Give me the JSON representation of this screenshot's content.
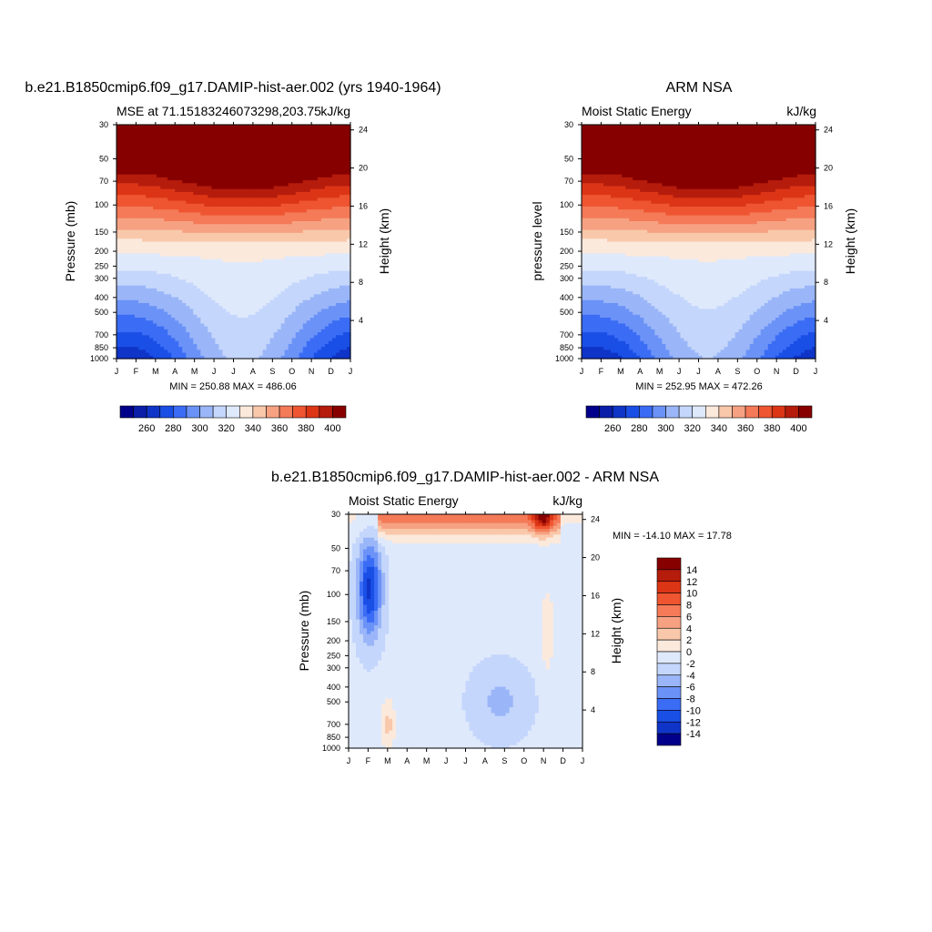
{
  "chart_data": [
    {
      "type": "heatmap",
      "title": "b.e21.B1850cmip6.f09_g17.DAMIP-hist-aer.002 (yrs 1940-1964)",
      "subtitle_left": "MSE at 71.15183246073298,203.75",
      "subtitle_right": "kJ/kg",
      "ylabel": "Pressure (mb)",
      "y2label": "Height (km)",
      "x_ticks": [
        "J",
        "F",
        "M",
        "A",
        "M",
        "J",
        "J",
        "A",
        "S",
        "O",
        "N",
        "D",
        "J"
      ],
      "y_ticks": [
        30,
        50,
        70,
        100,
        150,
        200,
        250,
        300,
        400,
        500,
        700,
        850,
        1000
      ],
      "y2_ticks": [
        24,
        20,
        16,
        12,
        8,
        4
      ],
      "y_scale": "log",
      "stats": "MIN = 250.88 MAX = 486.06",
      "colorbar_labels": [
        "260",
        "280",
        "300",
        "320",
        "340",
        "360",
        "380",
        "400"
      ],
      "colorbar_colors": [
        "#00008a",
        "#0a1ea8",
        "#0f34c8",
        "#1a4fe6",
        "#3a6cf5",
        "#6b92f7",
        "#9ab6f8",
        "#c4d6fb",
        "#dfe9fc",
        "#fbe9dc",
        "#f9c8ab",
        "#f6a282",
        "#f47a58",
        "#ee5530",
        "#dc3516",
        "#b51c0c",
        "#870000"
      ],
      "contour_levels": [
        250,
        260,
        270,
        280,
        290,
        300,
        310,
        320,
        330,
        340,
        350,
        360,
        370,
        380,
        390,
        400
      ]
    },
    {
      "type": "heatmap",
      "title": "ARM NSA",
      "subtitle_left": "Moist Static Energy",
      "subtitle_right": "kJ/kg",
      "ylabel": "pressure level",
      "y2label": "Height (km)",
      "x_ticks": [
        "J",
        "F",
        "M",
        "A",
        "M",
        "J",
        "J",
        "A",
        "S",
        "O",
        "N",
        "D",
        "J"
      ],
      "y_ticks": [
        30,
        50,
        70,
        100,
        150,
        200,
        250,
        300,
        400,
        500,
        700,
        850,
        1000
      ],
      "y2_ticks": [
        24,
        20,
        16,
        12,
        8,
        4
      ],
      "y_scale": "log",
      "stats": "MIN = 252.95 MAX = 472.26",
      "colorbar_labels": [
        "260",
        "280",
        "300",
        "320",
        "340",
        "360",
        "380",
        "400"
      ],
      "colorbar_colors": [
        "#00008a",
        "#0a1ea8",
        "#0f34c8",
        "#1a4fe6",
        "#3a6cf5",
        "#6b92f7",
        "#9ab6f8",
        "#c4d6fb",
        "#dfe9fc",
        "#fbe9dc",
        "#f9c8ab",
        "#f6a282",
        "#f47a58",
        "#ee5530",
        "#dc3516",
        "#b51c0c",
        "#870000"
      ],
      "contour_levels": [
        250,
        260,
        270,
        280,
        290,
        300,
        310,
        320,
        330,
        340,
        350,
        360,
        370,
        380,
        390,
        400
      ]
    },
    {
      "type": "heatmap",
      "title": "b.e21.B1850cmip6.f09_g17.DAMIP-hist-aer.002 - ARM NSA",
      "subtitle_left": "Moist Static Energy",
      "subtitle_right": "kJ/kg",
      "ylabel": "Pressure (mb)",
      "y2label": "Height (km)",
      "x_ticks": [
        "J",
        "F",
        "M",
        "A",
        "M",
        "J",
        "J",
        "A",
        "S",
        "O",
        "N",
        "D",
        "J"
      ],
      "y_ticks": [
        30,
        50,
        70,
        100,
        150,
        200,
        250,
        300,
        400,
        500,
        700,
        850,
        1000
      ],
      "y2_ticks": [
        24,
        20,
        16,
        12,
        8,
        4
      ],
      "y_scale": "log",
      "stats": "MIN = -14.10 MAX =  17.78",
      "colorbar_labels": [
        "14",
        "12",
        "10",
        "8",
        "6",
        "4",
        "2",
        "0",
        "-2",
        "-4",
        "-6",
        "-8",
        "-10",
        "-12",
        "-14"
      ],
      "colorbar_colors": [
        "#870000",
        "#b51c0c",
        "#dc3516",
        "#ee5530",
        "#f47a58",
        "#f6a282",
        "#f9c8ab",
        "#fbe9dc",
        "#dfe9fc",
        "#c4d6fb",
        "#9ab6f8",
        "#6b92f7",
        "#3a6cf5",
        "#1a4fe6",
        "#0f34c8",
        "#00008a"
      ]
    }
  ]
}
